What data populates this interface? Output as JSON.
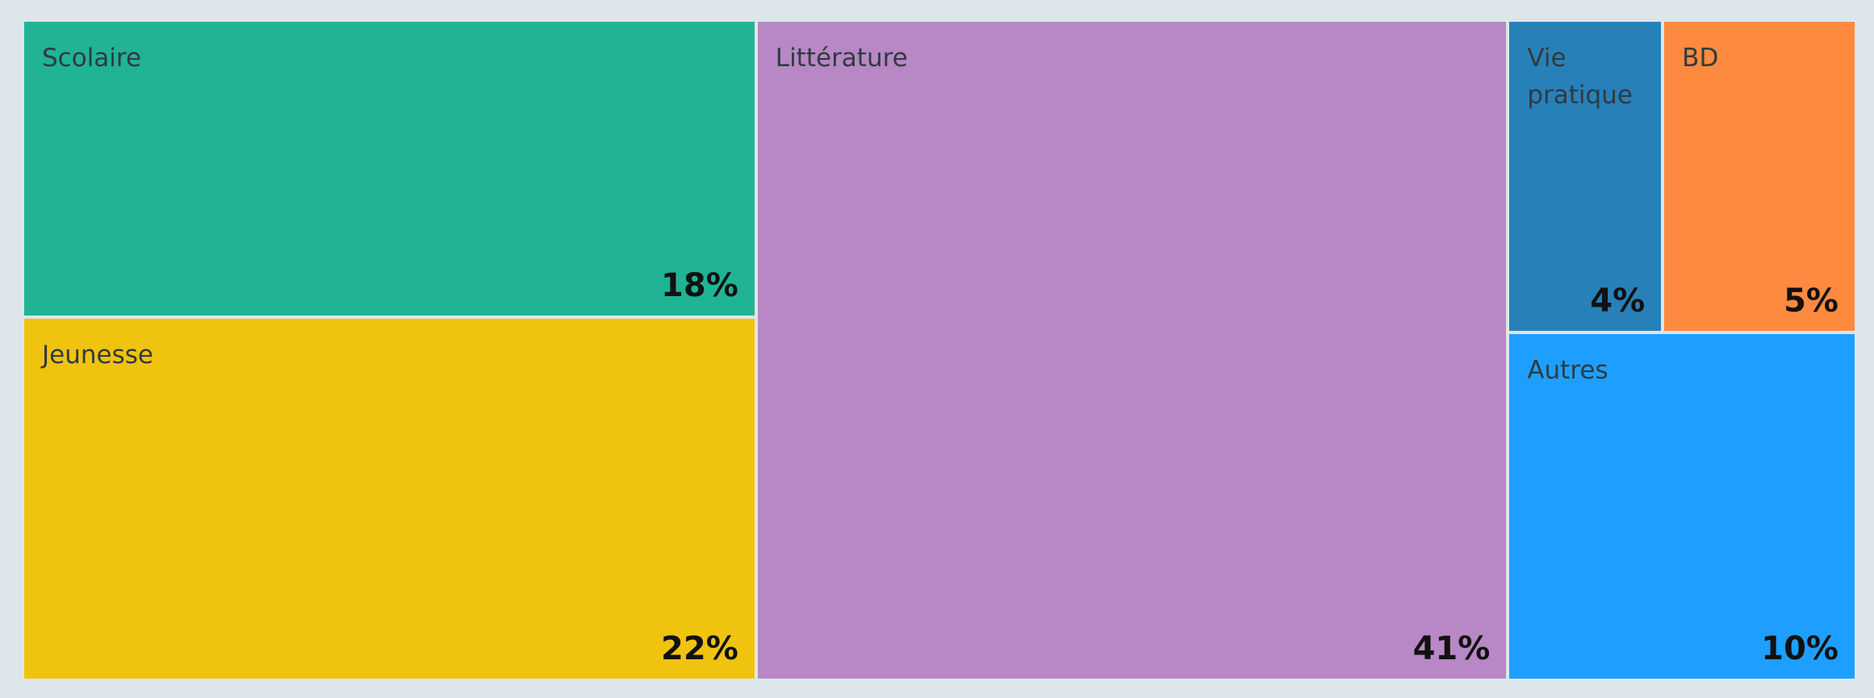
{
  "chart_data": {
    "type": "treemap",
    "unit": "%",
    "items": [
      {
        "id": "scolaire",
        "label": "Scolaire",
        "value": 18,
        "value_label": "18%",
        "color": "#20b394"
      },
      {
        "id": "jeunesse",
        "label": "Jeunesse",
        "value": 22,
        "value_label": "22%",
        "color": "#f0c30f"
      },
      {
        "id": "litterature",
        "label": "Littérature",
        "value": 41,
        "value_label": "41%",
        "color": "#b887c6"
      },
      {
        "id": "vie-pratique",
        "label": "Vie\npratique",
        "value": 4,
        "value_label": "4%",
        "color": "#2880b9"
      },
      {
        "id": "bd",
        "label": "BD",
        "value": 5,
        "value_label": "5%",
        "color": "#fe8a3f"
      },
      {
        "id": "autres",
        "label": "Autres",
        "value": 10,
        "value_label": "10%",
        "color": "#1e9fff"
      }
    ]
  }
}
